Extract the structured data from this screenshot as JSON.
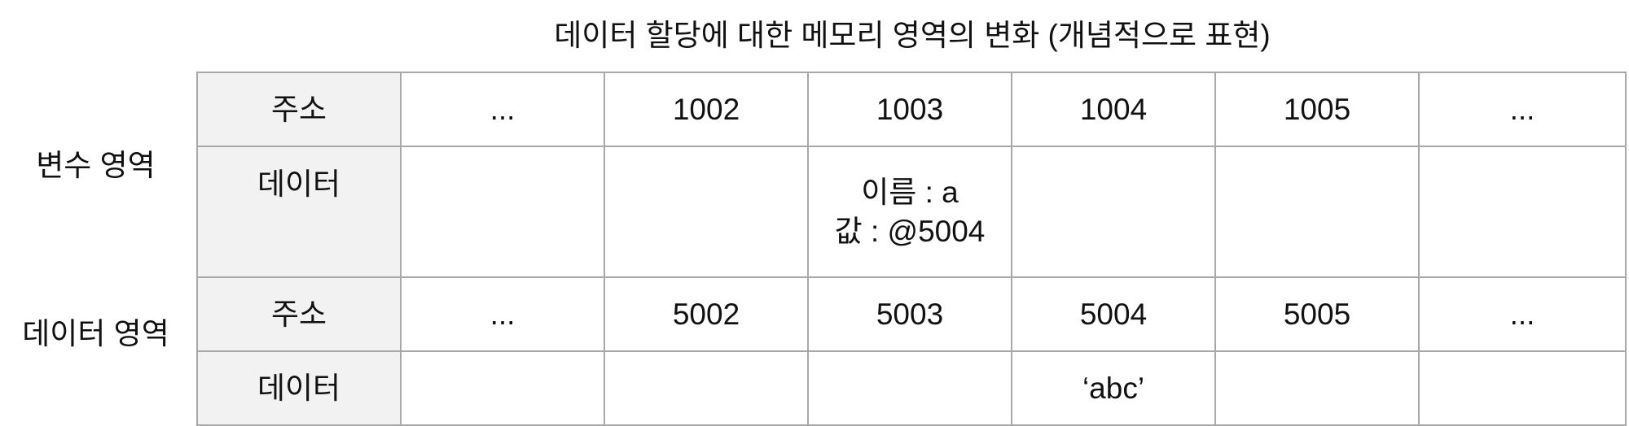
{
  "title": "데이터 할당에 대한 메모리 영역의 변화 (개념적으로 표현)",
  "sections": {
    "variable_area": "변수 영역",
    "data_area": "데이터 영역"
  },
  "row_labels": {
    "address": "주소",
    "data": "데이터"
  },
  "variable_area": {
    "addresses": [
      "...",
      "1002",
      "1003",
      "1004",
      "1005",
      "..."
    ],
    "data": [
      "",
      "",
      "이름 : a",
      "",
      "",
      ""
    ],
    "data_line2": [
      "",
      "",
      "값 : @5004",
      "",
      "",
      ""
    ]
  },
  "data_area": {
    "addresses": [
      "...",
      "5002",
      "5003",
      "5004",
      "5005",
      "..."
    ],
    "data": [
      "",
      "",
      "",
      "‘abc’",
      "",
      ""
    ]
  }
}
